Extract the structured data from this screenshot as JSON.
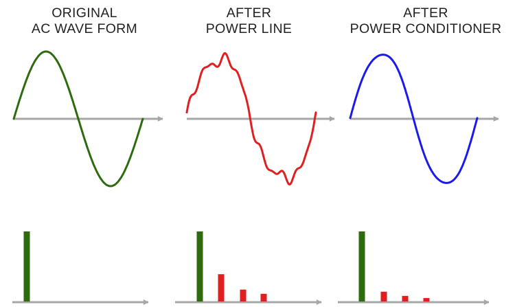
{
  "panels": [
    {
      "id": "original",
      "title_lines": [
        "ORIGINAL",
        "AC WAVE FORM"
      ],
      "wave_color": "#2e6b0e",
      "spectrum": {
        "fundamental": 1.0,
        "harmonics": []
      }
    },
    {
      "id": "after-power-line",
      "title_lines": [
        "AFTER",
        "POWER LINE"
      ],
      "wave_color": "#e02020",
      "spectrum": {
        "fundamental": 1.0,
        "harmonics": [
          0.39,
          0.17,
          0.11
        ]
      }
    },
    {
      "id": "after-power-conditioner",
      "title_lines": [
        "AFTER",
        "POWER CONDITIONER"
      ],
      "wave_color": "#1a1aee",
      "spectrum": {
        "fundamental": 1.0,
        "harmonics": [
          0.14,
          0.08,
          0.05
        ]
      }
    }
  ],
  "colors": {
    "axis": "#a6a6a6",
    "fundamental_bar": "#2e6b0e",
    "harmonic_bar": "#e02020"
  }
}
